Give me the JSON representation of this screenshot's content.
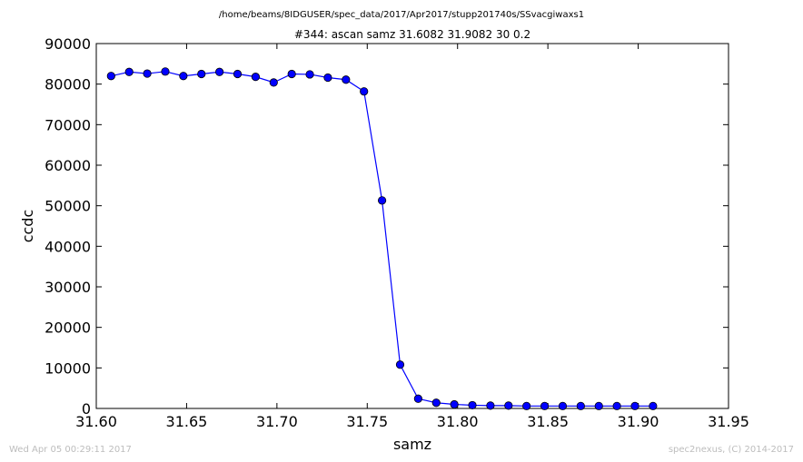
{
  "chart_data": {
    "type": "line",
    "suptitle": "/home/beams/8IDGUSER/spec_data/2017/Apr2017/stupp201740s/SSvacgiwaxs1",
    "title": "#344: ascan  samz 31.6082 31.9082  30 0.2",
    "xlabel": "samz",
    "ylabel": "ccdc",
    "xlim": [
      31.6,
      31.95
    ],
    "ylim": [
      0,
      90000
    ],
    "xticks": [
      31.6,
      31.65,
      31.7,
      31.75,
      31.8,
      31.85,
      31.9,
      31.95
    ],
    "xtick_labels": [
      "31.60",
      "31.65",
      "31.70",
      "31.75",
      "31.80",
      "31.85",
      "31.90",
      "31.95"
    ],
    "yticks": [
      0,
      10000,
      20000,
      30000,
      40000,
      50000,
      60000,
      70000,
      80000,
      90000
    ],
    "ytick_labels": [
      "0",
      "10000",
      "20000",
      "30000",
      "40000",
      "50000",
      "60000",
      "70000",
      "80000",
      "90000"
    ],
    "grid": false,
    "line_color": "#0000ff",
    "marker": "circle",
    "x": [
      31.6082,
      31.6182,
      31.6282,
      31.6382,
      31.6482,
      31.6582,
      31.6682,
      31.6782,
      31.6882,
      31.6982,
      31.7082,
      31.7182,
      31.7282,
      31.7382,
      31.7482,
      31.7582,
      31.7682,
      31.7782,
      31.7882,
      31.7982,
      31.8082,
      31.8182,
      31.8282,
      31.8382,
      31.8482,
      31.8582,
      31.8682,
      31.8782,
      31.8882,
      31.8982,
      31.9082
    ],
    "y": [
      82000,
      83000,
      82600,
      83100,
      82000,
      82500,
      83000,
      82500,
      81800,
      80400,
      82500,
      82400,
      81600,
      81100,
      78200,
      51300,
      10800,
      2400,
      1400,
      1000,
      800,
      700,
      700,
      600,
      600,
      600,
      600,
      600,
      600,
      600,
      600
    ]
  },
  "footer": {
    "timestamp": "Wed Apr 05 00:29:11 2017",
    "credit": "spec2nexus, (C) 2014-2017"
  }
}
